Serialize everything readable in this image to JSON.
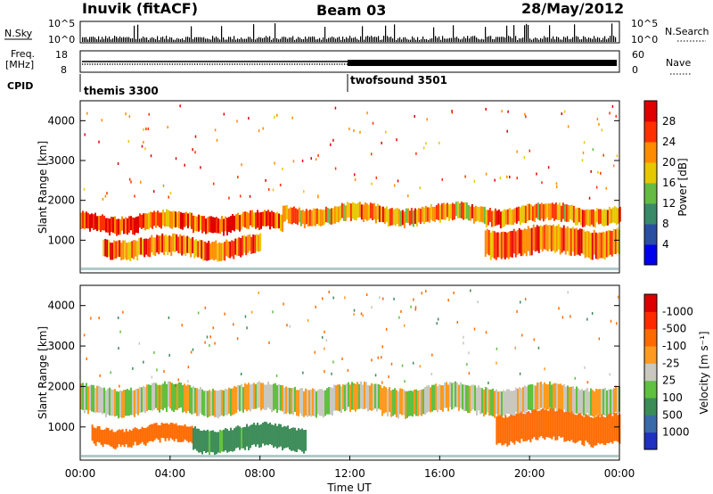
{
  "header": {
    "station": "Inuvik (fitACF)",
    "beam": "Beam 03",
    "date": "28/May/2012"
  },
  "panels": {
    "nsky_label": "N.Sky",
    "nsearch_label": "N.Search",
    "freq_label_line1": "Freq.",
    "freq_label_line2": "[MHz]",
    "nave_label": "Nave",
    "cpid_label": "CPID",
    "nsky_ticks": [
      "10^5",
      "10^0"
    ],
    "nsearch_ticks": [
      "10^5",
      "10^0"
    ],
    "freq_ticks": [
      "18",
      "8"
    ],
    "nave_ticks": [
      "60",
      "0"
    ],
    "cpid_segments": [
      {
        "start_ut": "00:00",
        "end_ut": "12:00",
        "name": "themis 3300"
      },
      {
        "start_ut": "12:00",
        "end_ut": "24:00",
        "name": "twofsound 3501"
      }
    ]
  },
  "x_axis": {
    "label": "Time UT",
    "ticks": [
      "00:00",
      "04:00",
      "08:00",
      "12:00",
      "16:00",
      "20:00",
      "00:00"
    ],
    "range_hours": [
      0,
      24
    ]
  },
  "chart_data": [
    {
      "type": "heatmap",
      "name": "Power",
      "ylabel": "Slant Range [km]",
      "yticks": [
        "1000",
        "2000",
        "3000",
        "4000"
      ],
      "ylim": [
        180,
        4500
      ],
      "colorbar_label": "Power [dB]",
      "colorbar_ticks": [
        "4",
        "8",
        "12",
        "16",
        "20",
        "24",
        "28"
      ],
      "colorbar_colors": [
        "#0000ee",
        "#2a4fa0",
        "#3a8a6a",
        "#66bb44",
        "#e6c800",
        "#ff8c00",
        "#ff3000",
        "#e00000"
      ],
      "bands": [
        {
          "t_start": 0,
          "t_end": 9,
          "range_km": [
            1250,
            1650
          ],
          "level_db": 26
        },
        {
          "t_start": 9,
          "t_end": 24,
          "range_km": [
            1450,
            1850
          ],
          "level_db": 22
        },
        {
          "t_start": 1,
          "t_end": 8,
          "range_km": [
            600,
            1050
          ],
          "level_db": 24
        },
        {
          "t_start": 18,
          "t_end": 24,
          "range_km": [
            650,
            1300
          ],
          "level_db": 24
        }
      ]
    },
    {
      "type": "heatmap",
      "name": "Velocity",
      "ylabel": "Slant Range [km]",
      "yticks": [
        "1000",
        "2000",
        "3000",
        "4000"
      ],
      "ylim": [
        180,
        4500
      ],
      "colorbar_label": "Velocity [m s⁻¹]",
      "colorbar_ticks": [
        "1000",
        "500",
        "100",
        "25",
        "-25",
        "-100",
        "-500",
        "-1000"
      ],
      "colorbar_colors": [
        "#2030c0",
        "#3a6aa8",
        "#3c8c58",
        "#60c040",
        "#c8c8c0",
        "#ff9a20",
        "#ff6a00",
        "#ff2a00",
        "#dd0000"
      ],
      "bands": [
        {
          "t_start": 0,
          "t_end": 24,
          "range_km": [
            1350,
            2000
          ],
          "velocity_ms": 0
        },
        {
          "t_start": 0.5,
          "t_end": 5,
          "range_km": [
            600,
            1000
          ],
          "velocity_ms": -200
        },
        {
          "t_start": 5,
          "t_end": 10,
          "range_km": [
            450,
            1000
          ],
          "velocity_ms": 150
        },
        {
          "t_start": 18.5,
          "t_end": 24,
          "range_km": [
            650,
            1350
          ],
          "velocity_ms": -250
        }
      ]
    }
  ]
}
